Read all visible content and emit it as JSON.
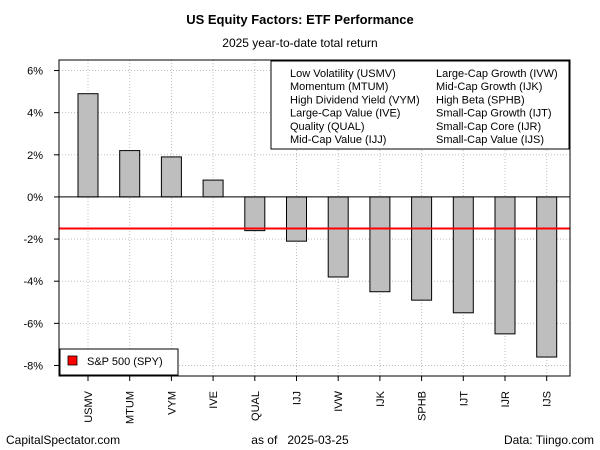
{
  "chart_data": {
    "type": "bar",
    "title": "US Equity Factors: ETF Performance",
    "subtitle": "2025 year-to-date total return",
    "categories": [
      "USMV",
      "MTUM",
      "VYM",
      "IVE",
      "QUAL",
      "IJJ",
      "IVW",
      "IJK",
      "SPHB",
      "IJT",
      "IJR",
      "IJS"
    ],
    "values": [
      4.9,
      2.2,
      1.9,
      0.8,
      -1.6,
      -2.1,
      -3.8,
      -4.5,
      -4.9,
      -5.5,
      -6.5,
      -7.6
    ],
    "ylim": [
      -8.5,
      6.5
    ],
    "yticks": [
      6,
      4,
      2,
      0,
      -2,
      -4,
      -6,
      -8
    ],
    "ytick_labels": [
      "6%",
      "4%",
      "2%",
      "0%",
      "-2%",
      "-4%",
      "-6%",
      "-8%"
    ],
    "xlabel": "",
    "ylabel": "",
    "grid": true,
    "bar_color": "#bebebe",
    "benchmark": {
      "name": "S&P 500 (SPY)",
      "value": -1.5,
      "color": "#ff0000"
    },
    "legend_placement": "top-right",
    "legend_left_column": [
      "Low Volatility (USMV)",
      "Momentum (MTUM)",
      "High Dividend Yield (VYM)",
      "Large-Cap Value (IVE)",
      "Quality (QUAL)",
      "Mid-Cap Value (IJJ)"
    ],
    "legend_right_column": [
      "Large-Cap Growth (IVW)",
      "Mid-Cap Growth (IJK)",
      "High Beta (SPHB)",
      "Small-Cap Growth (IJT)",
      "Small-Cap Core (IJR)",
      "Small-Cap Value (IJS)"
    ]
  },
  "footer": {
    "left": "CapitalSpectator.com",
    "center": "as of   2025-03-25",
    "right": "Data: Tiingo.com"
  }
}
